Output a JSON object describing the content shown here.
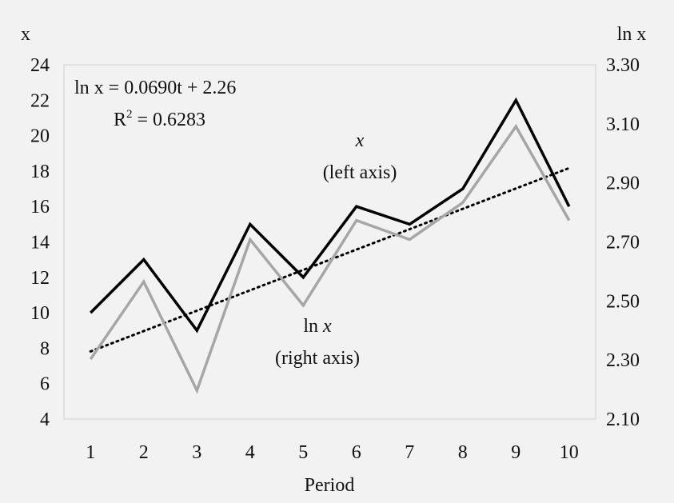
{
  "chart_data": {
    "type": "line",
    "title": "",
    "xlabel": "Period",
    "ylabel_left": "x",
    "ylabel_right": "ln x",
    "x": [
      1,
      2,
      3,
      4,
      5,
      6,
      7,
      8,
      9,
      10
    ],
    "x_tick_labels": [
      "1",
      "2",
      "3",
      "4",
      "5",
      "6",
      "7",
      "8",
      "9",
      "10"
    ],
    "xlim": [
      0.5,
      10.5
    ],
    "ylim_left": [
      4,
      24
    ],
    "ylim_right": [
      2.1,
      3.3
    ],
    "left_tick_labels": [
      "4",
      "6",
      "8",
      "10",
      "12",
      "14",
      "16",
      "18",
      "20",
      "22",
      "24"
    ],
    "right_tick_labels": [
      "2.10",
      "2.30",
      "2.50",
      "2.70",
      "2.90",
      "3.10",
      "3.30"
    ],
    "grid": false,
    "series": [
      {
        "axis": "left",
        "color": "#000000",
        "values": [
          10,
          13,
          9,
          15,
          12,
          16,
          15,
          17,
          22,
          16
        ]
      },
      {
        "axis": "right",
        "color": "#a6a6a6",
        "values": [
          2.303,
          2.565,
          2.197,
          2.708,
          2.485,
          2.773,
          2.708,
          2.833,
          3.091,
          2.773
        ]
      }
    ],
    "trendline": {
      "axis": "right",
      "style": "dotted",
      "color": "#000000",
      "slope": 0.069,
      "intercept": 2.26,
      "equation_text": "ln x = 0.0690t + 2.26",
      "r2_prefix": "R",
      "r2_sup": "2",
      "r2_value": " = 0.6283"
    },
    "annotations": {
      "x_series_name": "x",
      "x_series_axis": "(left axis)",
      "lnx_series_prefix": "ln ",
      "lnx_series_var": "x",
      "lnx_series_axis": "(right axis)"
    }
  }
}
